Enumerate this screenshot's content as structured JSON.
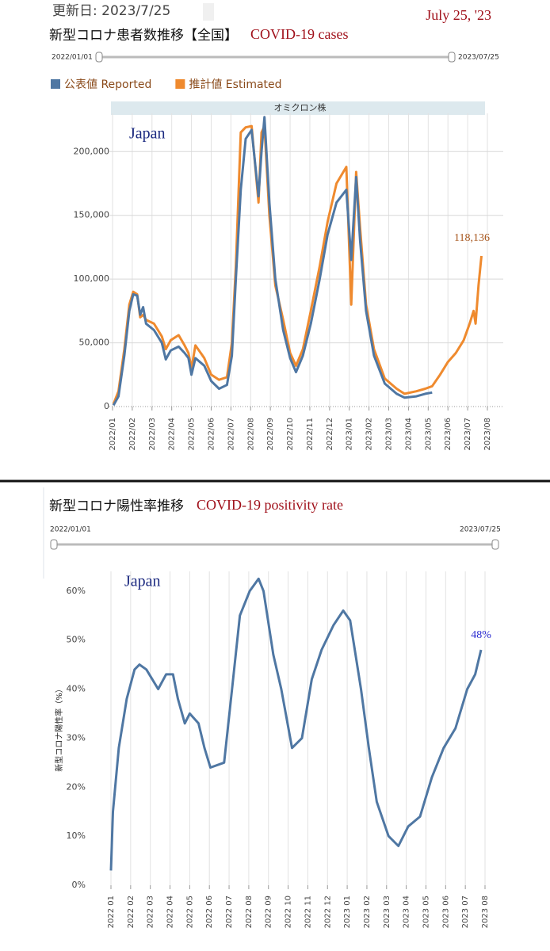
{
  "header": {
    "updated": "更新日: 2023/7/25",
    "date_note": "July 25, '23"
  },
  "chart_data": [
    {
      "type": "line",
      "title": "新型コロナ患者数推移【全国】",
      "title_en": "COVID-19 cases",
      "range_start": "2022/01/01",
      "range_end": "2023/07/25",
      "band_label": "オミクロン株",
      "annotation": "Japan",
      "grid": "both",
      "xlim": [
        0,
        19
      ],
      "ylim": [
        0,
        230000
      ],
      "xticks": [
        {
          "value": 0,
          "label": "2022/01"
        },
        {
          "value": 1,
          "label": "2022/02"
        },
        {
          "value": 2,
          "label": "2022/03"
        },
        {
          "value": 3,
          "label": "2022/04"
        },
        {
          "value": 4,
          "label": "2022/05"
        },
        {
          "value": 5,
          "label": "2022/06"
        },
        {
          "value": 6,
          "label": "2022/07"
        },
        {
          "value": 7,
          "label": "2022/08"
        },
        {
          "value": 8,
          "label": "2022/09"
        },
        {
          "value": 9,
          "label": "2022/10"
        },
        {
          "value": 10,
          "label": "2022/11"
        },
        {
          "value": 11,
          "label": "2022/12"
        },
        {
          "value": 12,
          "label": "2023/01"
        },
        {
          "value": 13,
          "label": "2023/02"
        },
        {
          "value": 14,
          "label": "2023/03"
        },
        {
          "value": 15,
          "label": "2023/04"
        },
        {
          "value": 16,
          "label": "2023/05"
        },
        {
          "value": 17,
          "label": "2023/06"
        },
        {
          "value": 18,
          "label": "2023/07"
        },
        {
          "value": 19,
          "label": "2023/08"
        }
      ],
      "yticks": [
        0,
        {
          "value": 50000,
          "label": "50,000"
        },
        {
          "value": 100000,
          "label": "100,000"
        },
        {
          "value": 150000,
          "label": "150,000"
        },
        {
          "value": 200000,
          "label": "200,000"
        }
      ],
      "series": [
        {
          "name": "推計値 Estimated",
          "color": "#ef8a2e",
          "x": [
            0.05,
            0.3,
            0.6,
            0.85,
            1.05,
            1.25,
            1.4,
            1.55,
            1.7,
            2.1,
            2.5,
            2.7,
            2.95,
            3.35,
            3.65,
            3.85,
            4.0,
            4.2,
            4.65,
            5.0,
            5.4,
            5.8,
            6.05,
            6.25,
            6.5,
            6.75,
            7.05,
            7.4,
            7.55,
            7.7,
            7.95,
            8.25,
            8.65,
            9.0,
            9.3,
            9.65,
            10.05,
            10.5,
            10.9,
            11.35,
            11.85,
            12.1,
            12.35,
            12.55,
            12.85,
            13.25,
            13.8,
            14.4,
            14.8,
            15.4,
            15.85,
            16.2,
            16.6,
            17.0,
            17.4,
            17.8,
            18.1,
            18.3,
            18.4,
            18.55,
            18.7
          ],
          "values": [
            2000,
            12000,
            45000,
            80000,
            90000,
            88000,
            70000,
            72000,
            68000,
            65000,
            55000,
            45000,
            52000,
            56000,
            48000,
            42000,
            30000,
            48000,
            38000,
            25000,
            21000,
            23000,
            50000,
            110000,
            215000,
            219000,
            220000,
            160000,
            215000,
            220000,
            150000,
            95000,
            68000,
            42000,
            32000,
            45000,
            75000,
            110000,
            145000,
            175000,
            188000,
            80000,
            184000,
            140000,
            80000,
            45000,
            22000,
            14000,
            10000,
            12000,
            14000,
            16000,
            25000,
            35000,
            42000,
            52000,
            65000,
            75000,
            65000,
            95000,
            118136
          ],
          "value_labels": [
            null,
            null,
            null,
            null,
            null,
            null,
            null,
            null,
            null,
            null,
            null,
            null,
            null,
            null,
            null,
            null,
            null,
            null,
            null,
            null,
            null,
            null,
            null,
            null,
            null,
            null,
            null,
            null,
            null,
            null,
            null,
            null,
            null,
            null,
            null,
            null,
            null,
            null,
            null,
            null,
            null,
            null,
            null,
            null,
            null,
            null,
            null,
            null,
            null,
            null,
            null,
            null,
            null,
            null,
            null,
            null,
            null,
            null,
            null,
            null,
            "118,136"
          ]
        },
        {
          "name": "公表値 Reported",
          "color": "#4f77a3",
          "x": [
            0.05,
            0.3,
            0.6,
            0.85,
            1.05,
            1.25,
            1.4,
            1.55,
            1.7,
            2.1,
            2.5,
            2.7,
            2.95,
            3.35,
            3.65,
            3.85,
            4.0,
            4.2,
            4.65,
            5.0,
            5.4,
            5.8,
            6.05,
            6.25,
            6.5,
            6.75,
            7.05,
            7.4,
            7.55,
            7.7,
            7.95,
            8.25,
            8.65,
            9.0,
            9.3,
            9.65,
            10.05,
            10.5,
            10.9,
            11.35,
            11.85,
            12.1,
            12.35,
            12.55,
            12.85,
            13.25,
            13.8,
            14.4,
            14.8,
            15.4,
            15.85,
            16.2
          ],
          "values": [
            1000,
            8000,
            40000,
            75000,
            88000,
            87000,
            72000,
            78000,
            65000,
            60000,
            50000,
            37000,
            44000,
            47000,
            42000,
            38000,
            25000,
            38000,
            32000,
            20000,
            14000,
            17000,
            40000,
            100000,
            170000,
            210000,
            217000,
            165000,
            200000,
            227000,
            160000,
            100000,
            60000,
            38000,
            27000,
            40000,
            65000,
            100000,
            135000,
            160000,
            170000,
            115000,
            180000,
            130000,
            75000,
            40000,
            18000,
            10000,
            7000,
            8000,
            10000,
            11000
          ]
        }
      ]
    },
    {
      "type": "line",
      "title": "新型コロナ陽性率推移",
      "title_en": "COVID-19 positivity rate",
      "range_start": "2022/01/01",
      "range_end": "2023/07/25",
      "annotation": "Japan",
      "y_label": "新型コロナ陽性率（%）",
      "grid": "x",
      "xlim": [
        0,
        19
      ],
      "ylim": [
        0,
        64
      ],
      "xticks": [
        {
          "value": 0,
          "label": "2022 01"
        },
        {
          "value": 1,
          "label": "2022 02"
        },
        {
          "value": 2,
          "label": "2022 03"
        },
        {
          "value": 3,
          "label": "2022 04"
        },
        {
          "value": 4,
          "label": "2022 05"
        },
        {
          "value": 5,
          "label": "2022 06"
        },
        {
          "value": 6,
          "label": "2022 07"
        },
        {
          "value": 7,
          "label": "2022 08"
        },
        {
          "value": 8,
          "label": "2022 09"
        },
        {
          "value": 9,
          "label": "2022 10"
        },
        {
          "value": 10,
          "label": "2022 11"
        },
        {
          "value": 11,
          "label": "2022 12"
        },
        {
          "value": 12,
          "label": "2023 01"
        },
        {
          "value": 13,
          "label": "2023 02"
        },
        {
          "value": 14,
          "label": "2023 03"
        },
        {
          "value": 15,
          "label": "2023 04"
        },
        {
          "value": 16,
          "label": "2023 05"
        },
        {
          "value": 17,
          "label": "2023 06"
        },
        {
          "value": 18,
          "label": "2023 07"
        },
        {
          "value": 19,
          "label": "2023 08"
        }
      ],
      "yticks": [
        {
          "value": 0,
          "label": "0%"
        },
        {
          "value": 10,
          "label": "10%"
        },
        {
          "value": 20,
          "label": "20%"
        },
        {
          "value": 30,
          "label": "30%"
        },
        {
          "value": 40,
          "label": "40%"
        },
        {
          "value": 50,
          "label": "50%"
        },
        {
          "value": 60,
          "label": "60%"
        }
      ],
      "series": [
        {
          "color": "#4f77a3",
          "x": [
            0,
            0.1,
            0.4,
            0.8,
            1.2,
            1.45,
            1.8,
            2.4,
            2.8,
            3.15,
            3.4,
            3.75,
            4.0,
            4.45,
            4.75,
            5.05,
            5.75,
            6.15,
            6.55,
            7.05,
            7.5,
            7.75,
            8.25,
            8.65,
            9.2,
            9.7,
            10.2,
            10.7,
            11.3,
            11.8,
            12.15,
            12.7,
            13.1,
            13.5,
            14.1,
            14.6,
            15.1,
            15.7,
            16.3,
            16.9,
            17.5,
            18.1,
            18.5,
            18.8
          ],
          "values": [
            3,
            15,
            28,
            38,
            44,
            45,
            44,
            40,
            43,
            43,
            38,
            33,
            35,
            33,
            28,
            24,
            25,
            40,
            55,
            60,
            62.5,
            60,
            47,
            40,
            28,
            30,
            42,
            48,
            53,
            56,
            54,
            40,
            28,
            17,
            10,
            8,
            12,
            14,
            22,
            28,
            32,
            40,
            43,
            48
          ],
          "value_labels": [
            null,
            null,
            null,
            null,
            null,
            null,
            null,
            null,
            null,
            null,
            null,
            null,
            null,
            null,
            null,
            null,
            null,
            null,
            null,
            null,
            null,
            null,
            null,
            null,
            null,
            null,
            null,
            null,
            null,
            null,
            null,
            null,
            null,
            null,
            null,
            null,
            null,
            null,
            null,
            null,
            null,
            null,
            null,
            "48%"
          ]
        }
      ]
    }
  ]
}
